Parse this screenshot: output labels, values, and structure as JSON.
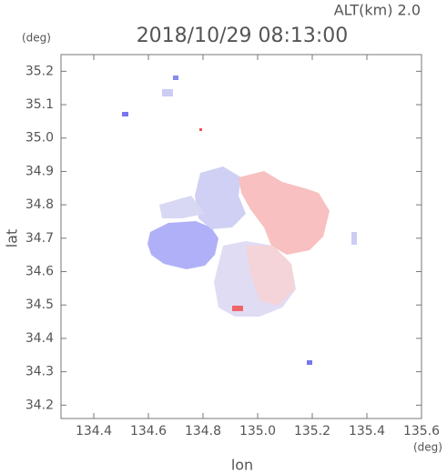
{
  "chart_data": {
    "type": "map",
    "title": "2018/10/29 08:13:00",
    "subtitle": "ALT(km) 2.0",
    "x_label": "lon",
    "x_unit": "(deg)",
    "y_label": "lat",
    "y_unit": "(deg)",
    "xlim": [
      134.28,
      135.6
    ],
    "ylim": [
      34.16,
      35.25
    ],
    "xticks": [
      134.4,
      134.6,
      134.8,
      {
        "value": 135.0,
        "label": "135.0"
      },
      135.2,
      135.4,
      135.6
    ],
    "yticks": [
      34.2,
      34.3,
      34.4,
      34.5,
      34.6,
      34.7,
      34.8,
      34.9,
      {
        "value": 35.0,
        "label": "35.0"
      },
      35.1,
      35.2
    ]
  }
}
